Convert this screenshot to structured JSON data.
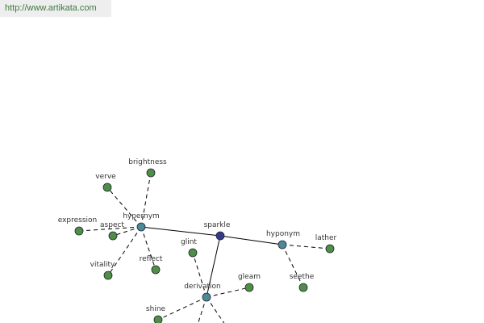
{
  "header": {
    "url": "http://www.artikata.com"
  },
  "graph": {
    "nodes": [
      {
        "label": "sparkle"
      },
      {
        "label": "hypernym"
      },
      {
        "label": "hyponym"
      },
      {
        "label": "derivation"
      },
      {
        "label": "brightness"
      },
      {
        "label": "verve"
      },
      {
        "label": "expression"
      },
      {
        "label": "aspect"
      },
      {
        "label": "vitality"
      },
      {
        "label": "reflect"
      },
      {
        "label": "lather"
      },
      {
        "label": "seethe"
      },
      {
        "label": "glint"
      },
      {
        "label": "gleam"
      },
      {
        "label": "shine"
      }
    ]
  }
}
